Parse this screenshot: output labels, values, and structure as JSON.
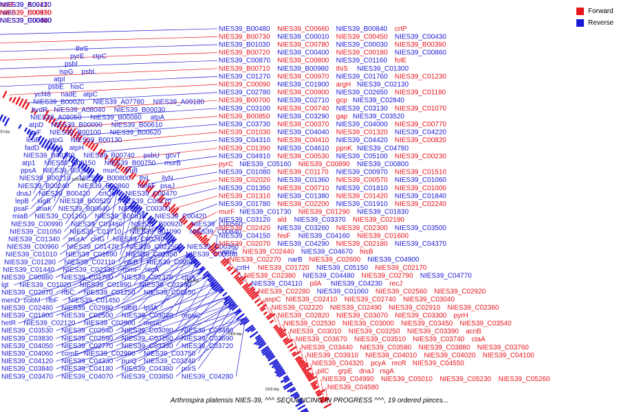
{
  "caption": "Arthrospira platensis NIES-39, ^^^ SEQUENCING IN PROGRESS ^^^, 19 ordered pieces...",
  "legend": [
    {
      "label": "Forward",
      "color": "#e8141c"
    },
    {
      "label": "Reverse",
      "color": "#1a1ad6"
    }
  ],
  "ticks": [
    "800 kbp",
    "900 kbp",
    "1000 kbp",
    "1100 kbp",
    "1200 kbp",
    "1300 kbp",
    "1400 kbp",
    "1500 kbp"
  ],
  "left_labels": [
    "thrS",
    "pyrE",
    "ctpC",
    "psbI",
    "ispG",
    "psbL",
    "atpI",
    "psbE",
    "hisC",
    "ycf48",
    "nadE",
    "atpC",
    "NIES39_B00020",
    "NIES39_A07780",
    "NIES39_A09180",
    "bvdR",
    "NIES39_A08040",
    "NIES39_B00030",
    "NIES39_A08050",
    "NIES39_B00080",
    "atpA",
    "atpD",
    "NIES39_B00090",
    "NIES39_B00610",
    "atpF",
    "NIES39_B00100",
    "NIES39_B00620",
    "leuB",
    "atpG",
    "NIES39_B00130",
    "fadD",
    "nadA",
    "atpH",
    "NIES39_B00140",
    "NIES39_B00740",
    "psbU",
    "gcvT",
    "atp1",
    "NIES39_B00150",
    "NIES39_B00750",
    "murB",
    "ppsA",
    "NIES39_B00760",
    "murC",
    "truB",
    "NIES39_B00210",
    "NIES39_B00800",
    "thiL",
    "ilvN",
    "NIES39_B00240",
    "NIES39_B00860",
    "menF",
    "psaJ",
    "dnaJ",
    "NIES39_B00420",
    "crtQb",
    "NIES39_C00470",
    "lepB",
    "sigB",
    "NIES39_B00520",
    "NIES39_C00170",
    "psaF",
    "dnaK",
    "NIES39_B00640",
    "NIES39_C00300",
    "miaB",
    "NIES39_C01260",
    "NIES39_B00810",
    "NIES39_C00420",
    "NIES39_C00990",
    "NIES39_C01460",
    "NIES39_B00920",
    "NIES39_C00560",
    "NIES39_C01050",
    "NIES39_C01710",
    "NIES39_B01090",
    "NIES39_C00840",
    "NIES39_C01340",
    "murA",
    "chlG",
    "NIES39_C00240",
    "NIES39_C00960",
    "NIES39_C01470",
    "NIES39_C02250",
    "NIES39_C00360",
    "NIES39_C01010",
    "NIES39_C01690",
    "NIES39_C02350",
    "NIES39_C00500",
    "NIES39_C01280",
    "NIES39_C02110",
    "ntcB",
    "NIES39_C00850",
    "NIES39_C01440",
    "NIES39_C02330",
    "rpmF",
    "ntcA",
    "NIES39_C00880",
    "NIES39_C01700",
    "NIES39_C02370",
    "ctpA",
    "lgt",
    "NIES39_C01020",
    "NIES39_C01890",
    "NIES39_C02390",
    "NIES39_C02870",
    "rfbC",
    "NIES39_C01250",
    "NIES39_C02150",
    "menD",
    "cobM",
    "rfbF",
    "NIES39_C01450",
    "NIES39_C02480",
    "NIES39_C02980",
    "ndbB",
    "lpdA",
    "NIES39_C01800",
    "NIES39_C02500",
    "NIES39_C03020",
    "moaC",
    "hetR",
    "NIES39_C02120",
    "NIES39_C02900",
    "menE",
    "NIES39_C03530",
    "NIES39_C02540",
    "NIES39_C03090",
    "NIES39_C03490",
    "NIES39_C03830",
    "NIES39_C02590",
    "NIES39_C03160",
    "NIES39_C03690",
    "NIES39_C04050",
    "NIES39_C02770",
    "NIES39_C03330",
    "NIES39_C03720",
    "NIES39_C04060",
    "comE",
    "NIES39_C02990",
    "NIES39_C03750",
    "NIES39_C04120",
    "NIES39_C04330",
    "purQ",
    "NIES39_C03240",
    "NIES39_C03840",
    "NIES39_C04180",
    "NIES39_C04380",
    "purS",
    "NIES39_C03470",
    "NIES39_C04070",
    "NIES39_C03850",
    "NIES39_C04280"
  ],
  "right_labels_blue": [
    "NIES39_B00410",
    "NIES39_B00470",
    "NIES39_B00970",
    "rsmB",
    "NIES39_B00400",
    "NIES39_C00020",
    "NIES39_B00480",
    "NIES39_B00840",
    "NIES39_C00010",
    "NIES39_C00430",
    "NIES39_B01030",
    "NIES39_C00030",
    "NIES39_C00400",
    "NIES39_C00860",
    "NIES39_C00870",
    "NIES39_C01160",
    "NIES39_B00980",
    "NIES39_C01300",
    "NIES39_C01270",
    "NIES39_C01760",
    "NIES39_C01900",
    "NIES39_C02130",
    "NIES39_C02780",
    "NIES39_C02650",
    "NIES39_C02710",
    "NIES39_C02840",
    "NIES39_C03100",
    "NIES39_C03130",
    "NIES39_C03290",
    "NIES39_C03520",
    "NIES39_C03730",
    "NIES39_C04000",
    "NIES39_C04040",
    "NIES39_C04220",
    "NIES39_C04310",
    "NIES39_C04420",
    "NIES39_C04610",
    "NIES39_C04780",
    "NIES39_C04910",
    "NIES39_C05100",
    "NIES39_C05160",
    "NIES39_C00800",
    "NIES39_C01080",
    "NIES39_C00970",
    "NIES39_C01360",
    "NIES39_C01060",
    "NIES39_C01350",
    "NIES39_C01810",
    "NIES39_C01380",
    "NIES39_C01840",
    "NIES39_C01780",
    "NIES39_C01910",
    "NIES39_C01730",
    "NIES39_C01830",
    "NIES39_C03120",
    "NIES39_C03370",
    "NIES39_C03260",
    "NIES39_C03500",
    "NIES39_C04150",
    "NIES39_C04160",
    "NIES39_C04290",
    "NIES39_C04370",
    "apcC",
    "NIES39_C04670",
    "narB",
    "NIES39_C04900",
    "crtH",
    "NIES39_C05150",
    "NIES39_C04480",
    "NIES39_C04770",
    "NIES39_C04110",
    "NIES39_C04230",
    "NIES39_C01060"
  ],
  "right_labels_red": [
    "NIES39_A09130",
    "acsF",
    "NIES39_B00870",
    "NIES39_C00150",
    "NIES39_C00460",
    "NIES39_C00310",
    "NIES39_C00660",
    "crtP",
    "NIES39_B00730",
    "NIES39_C00450",
    "NIES39_C00780",
    "NIES39_B00390",
    "NIES39_B00720",
    "NIES39_C00180",
    "NIES39_C00800",
    "folE",
    "NIES39_B00710",
    "thiS",
    "NIES39_C00970",
    "NIES39_C01230",
    "NIES39_C00090",
    "argH",
    "NIES39_C00900",
    "NIES39_C01180",
    "NIES39_B00700",
    "gcp",
    "NIES39_C00740",
    "NIES39_C01070",
    "NIES39_B00850",
    "gap",
    "NIES39_C00370",
    "NIES39_C00770",
    "NIES39_C01030",
    "NIES39_C01320",
    "NIES39_C00410",
    "NIES39_C00820",
    "NIES39_C01390",
    "ppnK",
    "NIES39_C00530",
    "NIES39_C00230",
    "pyrC",
    "NIES39_C00890",
    "NIES39_C01170",
    "NIES39_C01510",
    "NIES39_C02020",
    "NIES39_C00570",
    "NIES39_C00710",
    "NIES39_C01000",
    "NIES39_C01310",
    "NIES39_C01420",
    "NIES39_C02200",
    "NIES39_C02240",
    "murF",
    "NIES39_C01290",
    "ald",
    "NIES39_C02190",
    "NIES39_C02420",
    "NIES39_C02300",
    "hisF",
    "NIES39_C01600",
    "NIES39_C02070",
    "NIES39_C02180",
    "NIES39_C02440",
    "hisB",
    "NIES39_C02270",
    "NIES39_C02600",
    "NIES39_C01720",
    "NIES39_C02170",
    "NIES39_C02380",
    "NIES39_C02790",
    "pilA",
    "recJ",
    "NIES39_C02280",
    "NIES39_C02560",
    "NIES39_C02920",
    "aspC",
    "NIES39_C02410",
    "NIES39_C02740",
    "NIES39_C03040",
    "NIES39_C02220",
    "NIES39_C02490",
    "NIES39_C02910",
    "NIES39_C02360",
    "NIES39_C02820",
    "NIES39_C03070",
    "NIES39_C03300",
    "pyrH",
    "NIES39_C02530",
    "NIES39_C03000",
    "NIES39_C03450",
    "NIES39_C03540",
    "NIES39_C03010",
    "NIES39_C03250",
    "NIES39_C03390",
    "acnB",
    "NIES39_C03670",
    "NIES39_C03510",
    "NIES39_C03740",
    "ctaA",
    "NIES39_C03440",
    "NIES39_C03580",
    "NIES39_C03880",
    "NIES39_C03760",
    "NIES39_C03910",
    "NIES39_C04010",
    "NIES39_C04020",
    "NIES39_C04100",
    "NIES39_C04320",
    "pcyA",
    "recR",
    "NIES39_C04550",
    "pilC",
    "grpE",
    "dnaJ",
    "rsgA",
    "NIES39_C04990",
    "NIES39_C05010",
    "NIES39_C05230",
    "NIES39_C05260",
    "NIES39_C04580"
  ]
}
